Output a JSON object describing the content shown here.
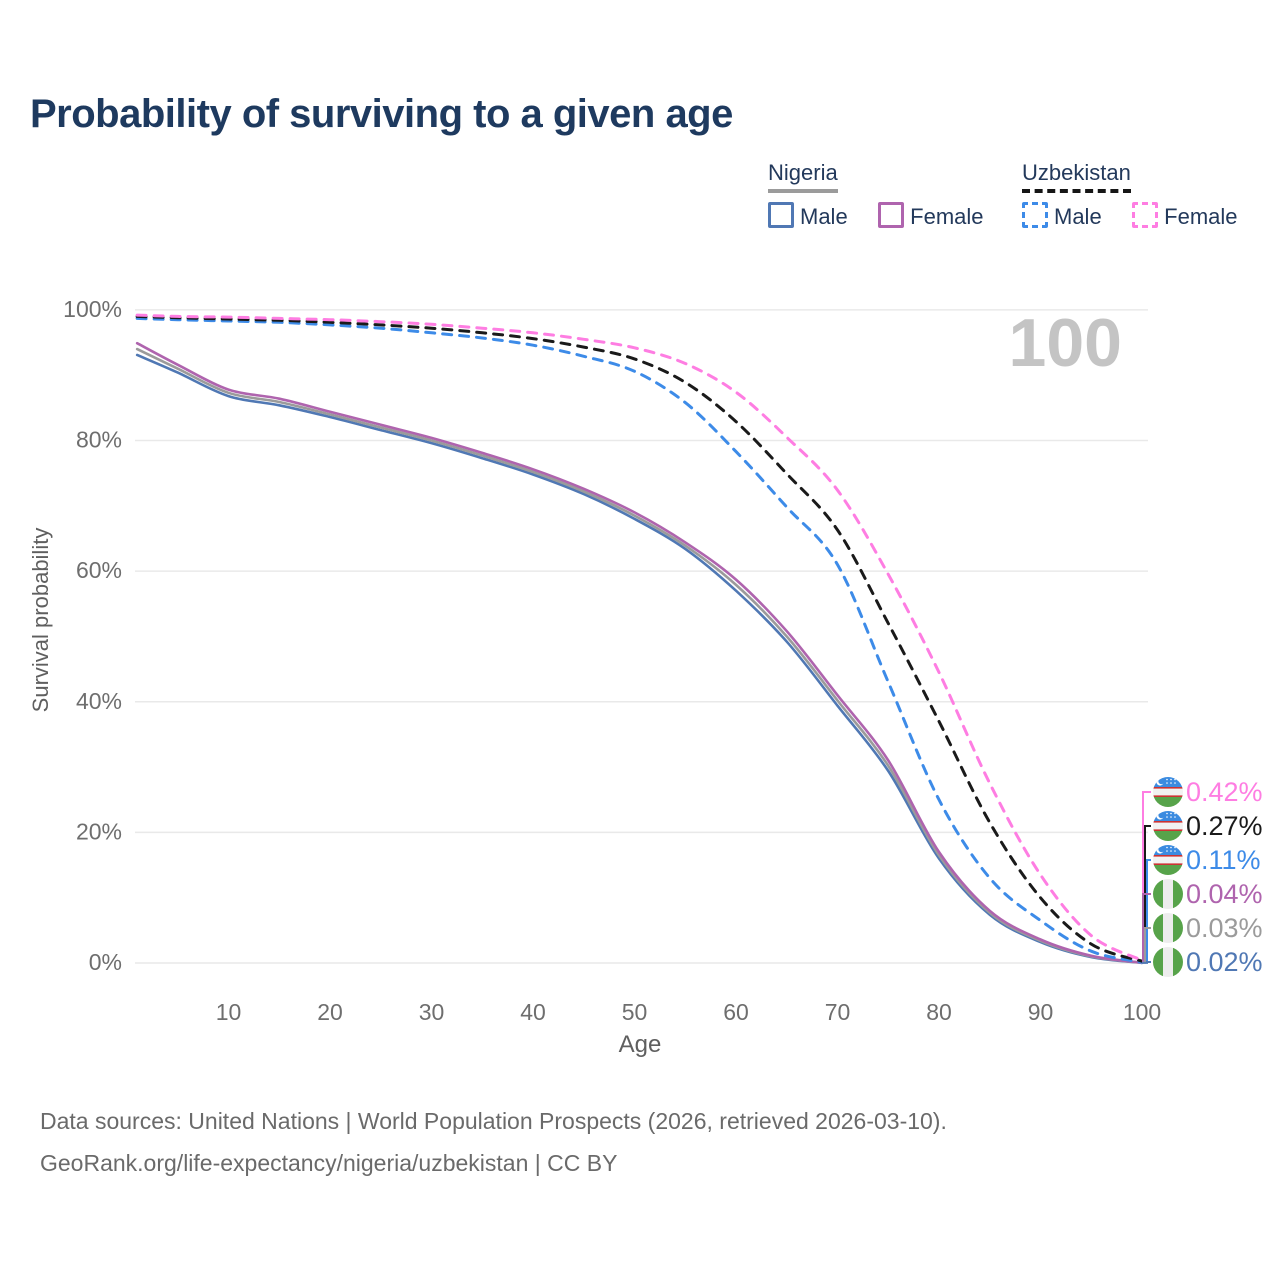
{
  "title": "Probability of surviving to a given age",
  "watermark": "100",
  "legend": {
    "groups": [
      {
        "name": "Nigeria",
        "line_style": "solid",
        "underline_color": "#9b9b9b",
        "items": [
          {
            "label": "Male",
            "color": "#5078b4"
          },
          {
            "label": "Female",
            "color": "#af64ae"
          }
        ]
      },
      {
        "name": "Uzbekistan",
        "line_style": "dashed",
        "underline_color": "#161616",
        "items": [
          {
            "label": "Male",
            "color": "#3d8be8"
          },
          {
            "label": "Female",
            "color": "#fe7de2"
          }
        ]
      }
    ]
  },
  "y_axis": {
    "label": "Survival probability",
    "ticks": [
      0,
      20,
      40,
      60,
      80,
      100
    ],
    "tick_suffix": "%"
  },
  "x_axis": {
    "label": "Age",
    "ticks": [
      10,
      20,
      30,
      40,
      50,
      60,
      70,
      80,
      90,
      100
    ]
  },
  "chart_data": {
    "type": "line",
    "title": "Probability of surviving to a given age",
    "xlabel": "Age",
    "ylabel": "Survival probability",
    "xlim": [
      0,
      100
    ],
    "ylim": [
      0,
      100
    ],
    "grid": "horizontal",
    "legend_position": "top-right",
    "ages": [
      1,
      5,
      10,
      15,
      20,
      25,
      30,
      35,
      40,
      45,
      50,
      55,
      60,
      65,
      70,
      75,
      80,
      85,
      90,
      95,
      100
    ],
    "series": [
      {
        "name": "Nigeria Male",
        "country": "Nigeria",
        "sex": "Male",
        "color": "#5078b4",
        "dash": "solid",
        "flag": "nigeria",
        "end_label": "0.02%",
        "values": [
          93.1,
          90.4,
          86.8,
          85.4,
          83.6,
          81.6,
          79.6,
          77.3,
          74.8,
          71.8,
          68.0,
          63.4,
          57.0,
          49.2,
          39.4,
          29.4,
          16.0,
          7.4,
          3.2,
          0.9,
          0.02
        ]
      },
      {
        "name": "Nigeria Both sexes",
        "country": "Nigeria",
        "sex": "Both",
        "color": "#9b9b9b",
        "dash": "solid",
        "flag": "nigeria",
        "end_label": "0.03%",
        "values": [
          94.0,
          91.0,
          87.3,
          85.9,
          84.0,
          82.0,
          80.0,
          77.7,
          75.2,
          72.2,
          68.5,
          63.9,
          57.9,
          50.0,
          40.2,
          30.2,
          16.5,
          7.7,
          3.4,
          1.0,
          0.03
        ]
      },
      {
        "name": "Nigeria Female",
        "country": "Nigeria",
        "sex": "Female",
        "color": "#af64ae",
        "dash": "solid",
        "flag": "nigeria",
        "end_label": "0.04%",
        "values": [
          94.9,
          91.6,
          87.8,
          86.4,
          84.4,
          82.4,
          80.4,
          78.1,
          75.6,
          72.6,
          69.0,
          64.4,
          58.7,
          50.8,
          41.0,
          31.0,
          17.0,
          8.0,
          3.6,
          1.1,
          0.04
        ]
      },
      {
        "name": "Uzbekistan Male",
        "country": "Uzbekistan",
        "sex": "Male",
        "color": "#3d8be8",
        "dash": "dashed",
        "flag": "uzbekistan",
        "end_label": "0.11%",
        "values": [
          98.7,
          98.5,
          98.3,
          98.1,
          97.7,
          97.2,
          96.5,
          95.7,
          94.6,
          92.9,
          90.6,
          85.8,
          78.3,
          69.8,
          61.0,
          43.0,
          25.0,
          13.0,
          6.5,
          1.8,
          0.11
        ]
      },
      {
        "name": "Uzbekistan Both sexes",
        "country": "Uzbekistan",
        "sex": "Both",
        "color": "#1a1a1a",
        "dash": "dashed",
        "flag": "uzbekistan",
        "end_label": "0.27%",
        "values": [
          99.0,
          98.8,
          98.6,
          98.4,
          98.1,
          97.7,
          97.2,
          96.5,
          95.6,
          94.3,
          92.5,
          88.9,
          82.9,
          74.9,
          66.3,
          52.0,
          37.0,
          21.5,
          10.0,
          2.9,
          0.27
        ]
      },
      {
        "name": "Uzbekistan Female",
        "country": "Uzbekistan",
        "sex": "Female",
        "color": "#fe7de2",
        "dash": "dashed",
        "flag": "uzbekistan",
        "end_label": "0.42%",
        "values": [
          99.2,
          99.0,
          98.9,
          98.7,
          98.5,
          98.2,
          97.8,
          97.2,
          96.5,
          95.5,
          94.2,
          91.8,
          87.4,
          80.5,
          72.4,
          59.5,
          44.5,
          27.5,
          13.5,
          4.2,
          0.42
        ]
      }
    ],
    "end_labels": [
      {
        "value": "0.42%",
        "flag": "uzbekistan",
        "color": "#fe7de2"
      },
      {
        "value": "0.27%",
        "flag": "uzbekistan",
        "color": "#1a1a1a"
      },
      {
        "value": "0.11%",
        "flag": "uzbekistan",
        "color": "#3d8be8"
      },
      {
        "value": "0.04%",
        "flag": "nigeria",
        "color": "#af64ae"
      },
      {
        "value": "0.03%",
        "flag": "nigeria",
        "color": "#9b9b9b"
      },
      {
        "value": "0.02%",
        "flag": "nigeria",
        "color": "#5078b4"
      }
    ]
  },
  "footer": {
    "line1": "Data sources: United Nations | World Population Prospects (2026, retrieved 2026-03-10).",
    "line2": "GeoRank.org/life-expectancy/nigeria/uzbekistan | CC BY"
  }
}
